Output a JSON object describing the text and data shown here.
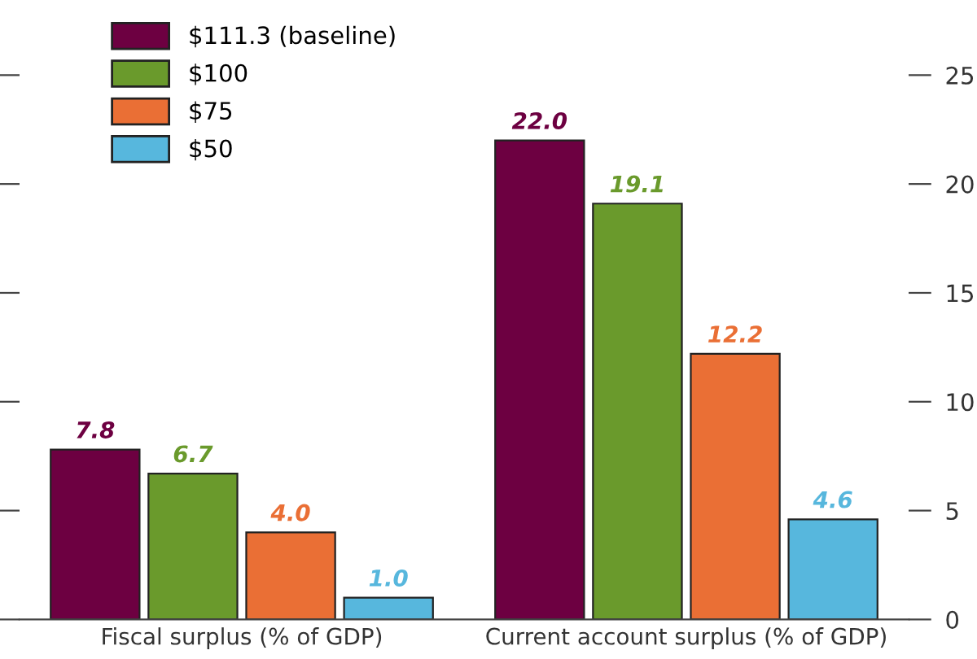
{
  "chart_data": {
    "type": "bar",
    "categories": [
      "Fiscal surplus (% of GDP)",
      "Current account surplus (% of GDP)"
    ],
    "series": [
      {
        "name": "$111.3 (baseline)",
        "color": "#6d0041",
        "values": [
          7.8,
          22.0
        ],
        "value_labels": [
          "7.8",
          "22.0"
        ]
      },
      {
        "name": "$100",
        "color": "#6a9a2c",
        "values": [
          6.7,
          19.1
        ],
        "value_labels": [
          "6.7",
          "19.1"
        ]
      },
      {
        "name": "$75",
        "color": "#ea6f35",
        "values": [
          4.0,
          12.2
        ],
        "value_labels": [
          "4.0",
          "12.2"
        ]
      },
      {
        "name": "$50",
        "color": "#57b7dd",
        "values": [
          1.0,
          4.6
        ],
        "value_labels": [
          "1.0",
          "4.6"
        ]
      }
    ],
    "ylim": [
      0,
      25
    ],
    "yticks": [
      0,
      5,
      10,
      15,
      20,
      25
    ],
    "legend": "top left",
    "grid": false
  }
}
